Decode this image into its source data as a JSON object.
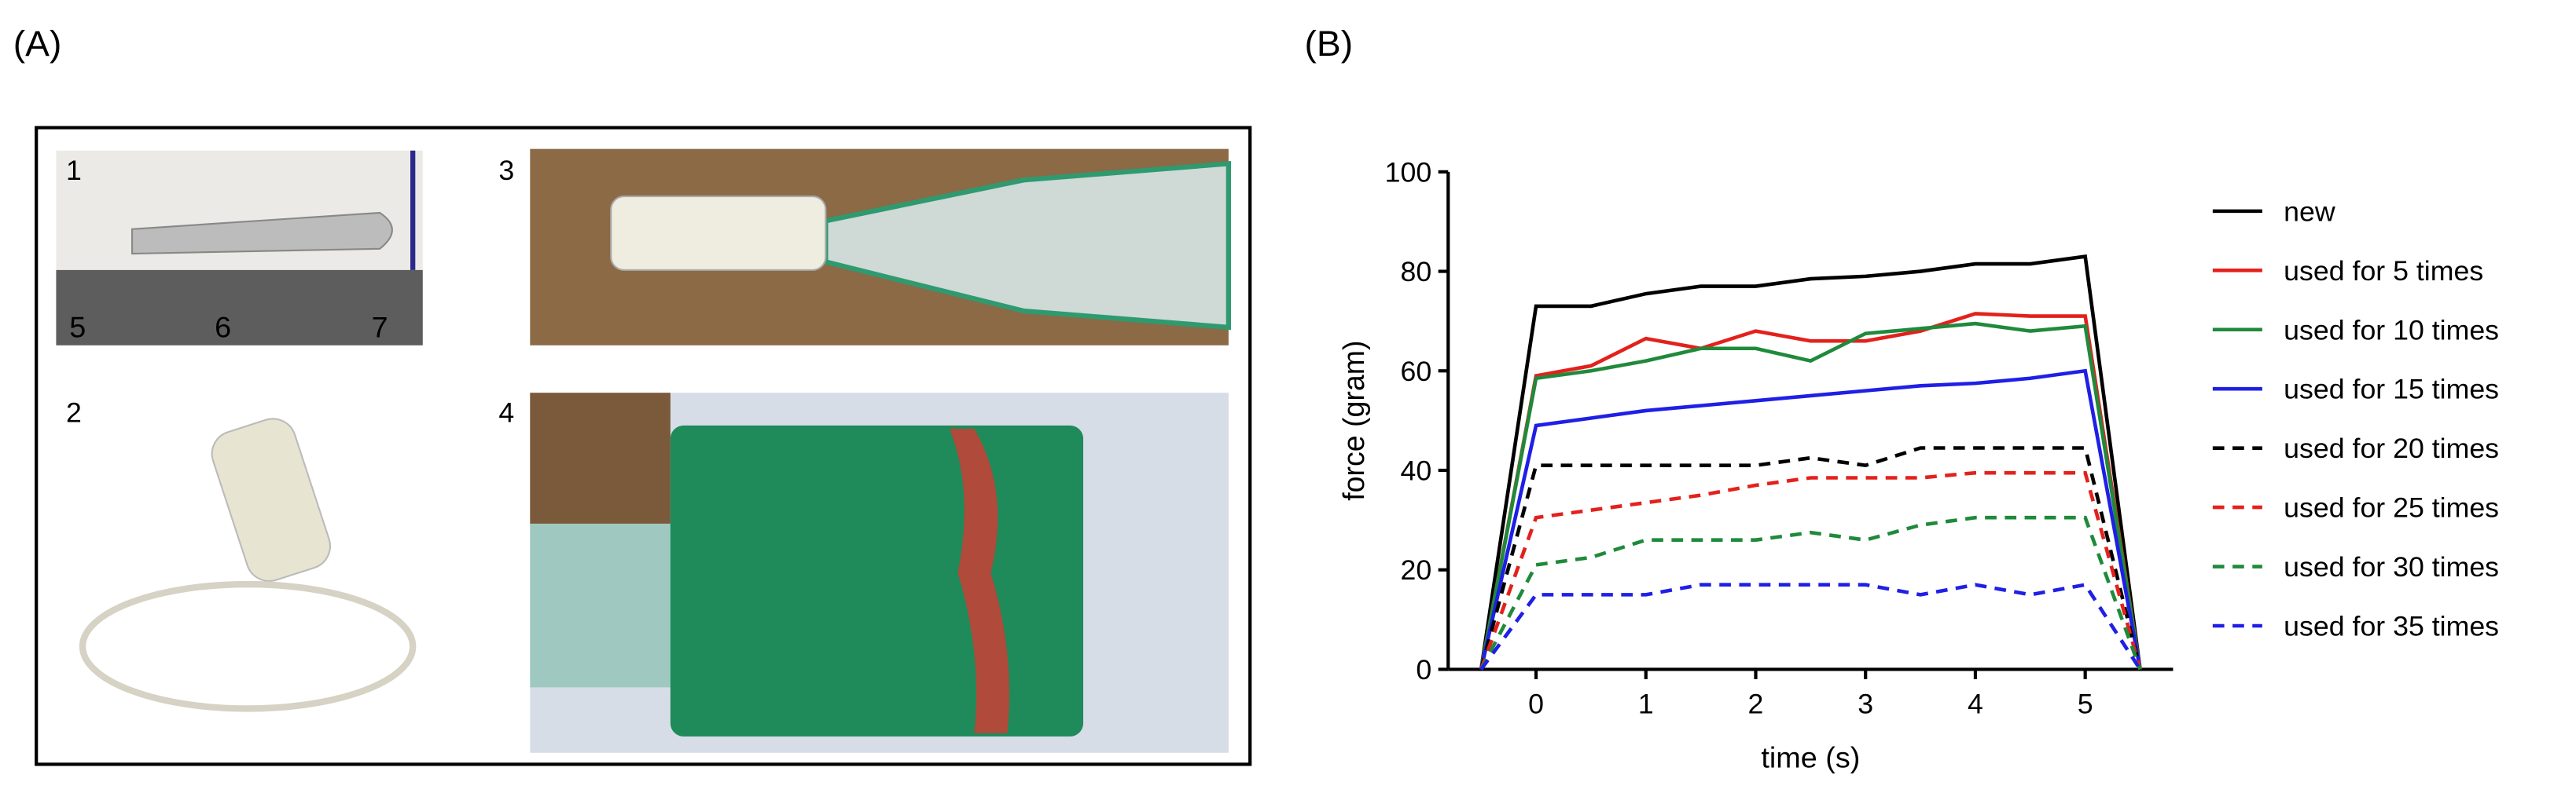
{
  "panels": {
    "a_label": "(A)",
    "b_label": "(B)",
    "photo_labels": [
      "1",
      "2",
      "3",
      "4"
    ]
  },
  "chart_data": {
    "type": "line",
    "x_label": "time (s)",
    "y_label": "force (gram)",
    "x": [
      -0.5,
      0,
      0.5,
      1,
      1.5,
      2,
      2.5,
      3,
      3.5,
      4,
      4.5,
      5,
      5.5
    ],
    "xlim": [
      -0.8,
      5.8
    ],
    "xticks": [
      0,
      1,
      2,
      3,
      4,
      5
    ],
    "ylim": [
      0,
      100
    ],
    "yticks": [
      0,
      20,
      40,
      60,
      80,
      100
    ],
    "series": [
      {
        "name": "new",
        "color": "#000000",
        "style": "solid",
        "values": [
          0,
          73,
          73,
          75.5,
          77,
          77,
          78.5,
          79,
          80,
          81.5,
          81.5,
          83,
          0
        ]
      },
      {
        "name": "used for 5 times",
        "color": "#e3211c",
        "style": "solid",
        "values": [
          0,
          59,
          61,
          66.5,
          64.5,
          68,
          66,
          66,
          68,
          71.5,
          71,
          71,
          0
        ]
      },
      {
        "name": "used for 10 times",
        "color": "#1f8a3b",
        "style": "solid",
        "values": [
          0,
          58.5,
          60,
          62,
          64.5,
          64.5,
          62,
          67.5,
          68.5,
          69.5,
          68,
          69,
          0
        ]
      },
      {
        "name": "used for 15 times",
        "color": "#1f1fe6",
        "style": "solid",
        "values": [
          0,
          49,
          50.5,
          52,
          53,
          54,
          55,
          56,
          57,
          57.5,
          58.5,
          60,
          0
        ]
      },
      {
        "name": "used for 20 times",
        "color": "#000000",
        "style": "dashed",
        "values": [
          0,
          41,
          41,
          41,
          41,
          41,
          42.5,
          41,
          44.5,
          44.5,
          44.5,
          44.5,
          0
        ]
      },
      {
        "name": "used for 25 times",
        "color": "#e3211c",
        "style": "dashed",
        "values": [
          0,
          30.5,
          32,
          33.5,
          35,
          37,
          38.5,
          38.5,
          38.5,
          39.5,
          39.5,
          39.5,
          0
        ]
      },
      {
        "name": "used for 30 times",
        "color": "#1f8a3b",
        "style": "dashed",
        "values": [
          0,
          21,
          22.5,
          26,
          26,
          26,
          27.5,
          26,
          29,
          30.5,
          30.5,
          30.5,
          0
        ]
      },
      {
        "name": "used for 35 times",
        "color": "#1f1fe6",
        "style": "dashed",
        "values": [
          0,
          15,
          15,
          15,
          17,
          17,
          17,
          17,
          15,
          17,
          15,
          17,
          0
        ]
      }
    ]
  }
}
